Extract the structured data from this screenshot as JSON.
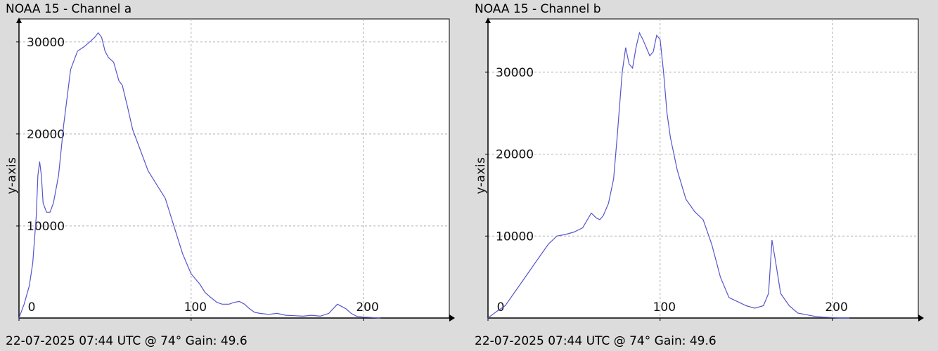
{
  "chart_data": [
    {
      "type": "line",
      "title": "NOAA 15 - Channel a",
      "footer": "22-07-2025 07:44 UTC @ 74° Gain: 49.6",
      "xlabel": "",
      "ylabel": "y-axis",
      "xlim": [
        0,
        250
      ],
      "ylim": [
        0,
        32500
      ],
      "x_ticks": [
        0,
        100,
        200
      ],
      "x_tick_labels": [
        "0",
        "100",
        "200"
      ],
      "y_ticks": [
        10000,
        20000,
        30000
      ],
      "y_tick_labels": [
        "10000",
        "20000",
        "30000"
      ],
      "grid": true,
      "line_color": "#5555cc",
      "series": [
        {
          "x": [
            0,
            3,
            6,
            8,
            10,
            11,
            12,
            13,
            14,
            16,
            18,
            20,
            23,
            26,
            30,
            34,
            38,
            41,
            44,
            46,
            48,
            50,
            52,
            55,
            58,
            60,
            63,
            66,
            70,
            75,
            80,
            85,
            90,
            95,
            100,
            105,
            108,
            111,
            115,
            118,
            122,
            125,
            128,
            131,
            134,
            137,
            140,
            145,
            150,
            155,
            160,
            165,
            170,
            175,
            180,
            185,
            190,
            193,
            196,
            200,
            205,
            210
          ],
          "y": [
            0,
            1500,
            3500,
            6000,
            11000,
            15500,
            17000,
            15500,
            12500,
            11500,
            11500,
            12500,
            15500,
            21000,
            27000,
            29000,
            29500,
            30000,
            30500,
            31000,
            30500,
            29000,
            28300,
            27800,
            25800,
            25300,
            23000,
            20500,
            18500,
            16000,
            14500,
            13000,
            10000,
            7000,
            4800,
            3700,
            2800,
            2300,
            1700,
            1500,
            1500,
            1700,
            1800,
            1500,
            1000,
            600,
            500,
            400,
            500,
            300,
            250,
            200,
            300,
            200,
            500,
            1500,
            1000,
            500,
            200,
            100,
            50,
            0
          ]
        }
      ]
    },
    {
      "type": "line",
      "title": "NOAA 15 - Channel b",
      "footer": "22-07-2025 07:44 UTC @ 74° Gain: 49.6",
      "xlabel": "",
      "ylabel": "y-axis",
      "xlim": [
        0,
        250
      ],
      "ylim": [
        0,
        36500
      ],
      "x_ticks": [
        0,
        100,
        200
      ],
      "x_tick_labels": [
        "0",
        "100",
        "200"
      ],
      "y_ticks": [
        10000,
        20000,
        30000
      ],
      "y_tick_labels": [
        "10000",
        "20000",
        "30000"
      ],
      "grid": true,
      "line_color": "#5555cc",
      "series": [
        {
          "x": [
            0,
            5,
            10,
            15,
            20,
            25,
            30,
            35,
            40,
            45,
            50,
            55,
            60,
            63,
            65,
            67,
            70,
            73,
            75,
            78,
            80,
            82,
            84,
            86,
            88,
            90,
            92,
            94,
            96,
            98,
            100,
            102,
            104,
            106,
            108,
            110,
            115,
            120,
            125,
            130,
            135,
            140,
            145,
            150,
            155,
            160,
            163,
            165,
            167,
            170,
            175,
            180,
            185,
            190,
            195,
            200,
            205,
            210
          ],
          "y": [
            0,
            800,
            1500,
            3000,
            4500,
            6000,
            7500,
            9000,
            10000,
            10200,
            10500,
            11000,
            12800,
            12200,
            12000,
            12500,
            14000,
            17000,
            22000,
            30000,
            33000,
            31000,
            30500,
            33000,
            34800,
            34000,
            33000,
            32000,
            32500,
            34500,
            34000,
            30000,
            25000,
            22000,
            20000,
            18000,
            14500,
            13000,
            12000,
            9000,
            5000,
            2500,
            2000,
            1500,
            1200,
            1500,
            3000,
            9500,
            7000,
            3000,
            1500,
            600,
            400,
            200,
            100,
            50,
            0,
            0
          ]
        }
      ]
    }
  ]
}
